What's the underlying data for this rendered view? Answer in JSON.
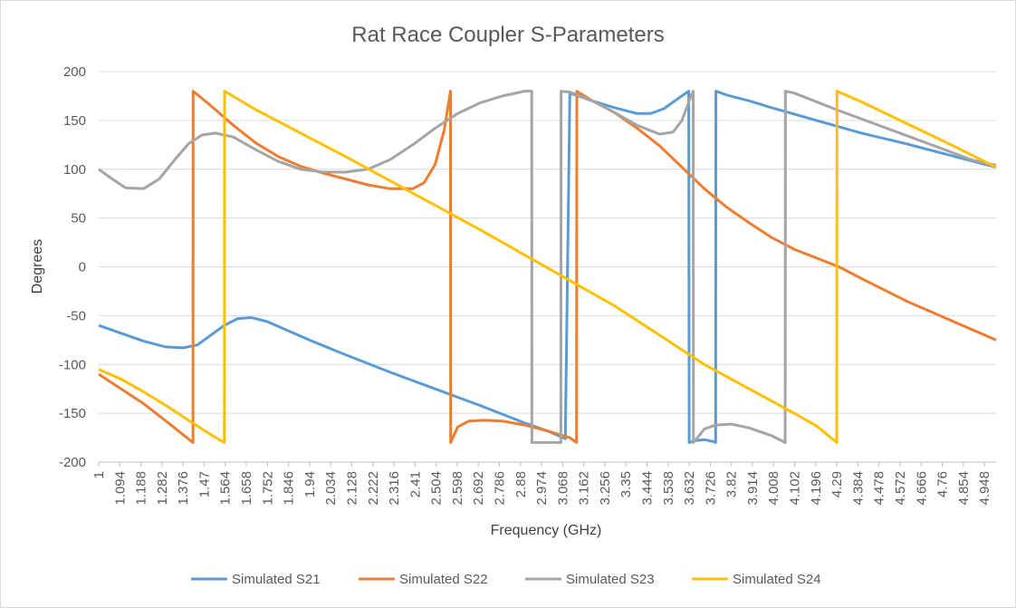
{
  "chart_data": {
    "type": "line",
    "title": "Rat Race Coupler S-Parameters",
    "xlabel": "Frequency (GHz)",
    "ylabel": "Degrees",
    "xlim": [
      1,
      5
    ],
    "ylim": [
      -200,
      200
    ],
    "y_ticks": [
      200,
      150,
      100,
      50,
      0,
      -50,
      -100,
      -150,
      -200
    ],
    "x_ticks": [
      "1",
      "1.094",
      "1.188",
      "1.282",
      "1.376",
      "1.47",
      "1.564",
      "1.658",
      "1.752",
      "1.846",
      "1.94",
      "2.034",
      "2.128",
      "2.222",
      "2.316",
      "2.41",
      "2.504",
      "2.598",
      "2.692",
      "2.786",
      "2.88",
      "2.974",
      "3.068",
      "3.162",
      "3.256",
      "3.35",
      "3.444",
      "3.538",
      "3.632",
      "3.726",
      "3.82",
      "3.914",
      "4.008",
      "4.102",
      "4.196",
      "4.29",
      "4.384",
      "4.478",
      "4.572",
      "4.666",
      "4.76",
      "4.854",
      "4.948"
    ],
    "grid": "horizontal",
    "legend_position": "bottom",
    "series": [
      {
        "name": "Simulated S21",
        "color": "#5b9bd5",
        "points": [
          [
            1.0,
            -60
          ],
          [
            1.1,
            -68
          ],
          [
            1.2,
            -76
          ],
          [
            1.3,
            -82
          ],
          [
            1.376,
            -83
          ],
          [
            1.44,
            -80
          ],
          [
            1.5,
            -70
          ],
          [
            1.56,
            -60
          ],
          [
            1.62,
            -53
          ],
          [
            1.68,
            -52
          ],
          [
            1.75,
            -56
          ],
          [
            1.85,
            -66
          ],
          [
            1.95,
            -76
          ],
          [
            2.1,
            -90
          ],
          [
            2.3,
            -108
          ],
          [
            2.5,
            -125
          ],
          [
            2.7,
            -142
          ],
          [
            2.9,
            -160
          ],
          [
            3.0,
            -168
          ],
          [
            3.08,
            -176
          ],
          [
            3.1,
            178
          ],
          [
            3.2,
            170
          ],
          [
            3.3,
            163
          ],
          [
            3.4,
            157
          ],
          [
            3.46,
            157
          ],
          [
            3.52,
            162
          ],
          [
            3.58,
            172
          ],
          [
            3.63,
            180
          ],
          [
            3.632,
            -180
          ],
          [
            3.66,
            -178
          ],
          [
            3.7,
            -177
          ],
          [
            3.74,
            -179
          ],
          [
            3.75,
            -180
          ],
          [
            3.751,
            180
          ],
          [
            3.8,
            176
          ],
          [
            3.9,
            170
          ],
          [
            4.0,
            163
          ],
          [
            4.2,
            150
          ],
          [
            4.4,
            137
          ],
          [
            4.6,
            126
          ],
          [
            4.8,
            114
          ],
          [
            5.0,
            102
          ]
        ]
      },
      {
        "name": "Simulated S22",
        "color": "#ed7d31",
        "points": [
          [
            1.0,
            -110
          ],
          [
            1.1,
            -125
          ],
          [
            1.2,
            -140
          ],
          [
            1.3,
            -158
          ],
          [
            1.42,
            -180
          ],
          [
            1.421,
            180
          ],
          [
            1.5,
            165
          ],
          [
            1.6,
            145
          ],
          [
            1.7,
            127
          ],
          [
            1.8,
            113
          ],
          [
            1.9,
            103
          ],
          [
            2.0,
            96
          ],
          [
            2.1,
            90
          ],
          [
            2.2,
            84
          ],
          [
            2.3,
            80
          ],
          [
            2.4,
            80
          ],
          [
            2.45,
            86
          ],
          [
            2.5,
            105
          ],
          [
            2.54,
            140
          ],
          [
            2.568,
            180
          ],
          [
            2.569,
            -180
          ],
          [
            2.6,
            -164
          ],
          [
            2.65,
            -158
          ],
          [
            2.72,
            -157
          ],
          [
            2.8,
            -158
          ],
          [
            2.9,
            -162
          ],
          [
            3.0,
            -168
          ],
          [
            3.1,
            -175
          ],
          [
            3.13,
            -180
          ],
          [
            3.131,
            180
          ],
          [
            3.2,
            170
          ],
          [
            3.3,
            158
          ],
          [
            3.4,
            142
          ],
          [
            3.5,
            124
          ],
          [
            3.6,
            102
          ],
          [
            3.7,
            80
          ],
          [
            3.8,
            61
          ],
          [
            3.9,
            45
          ],
          [
            4.0,
            30
          ],
          [
            4.1,
            18
          ],
          [
            4.3,
            0
          ],
          [
            4.4,
            -12
          ],
          [
            4.6,
            -35
          ],
          [
            4.8,
            -55
          ],
          [
            5.0,
            -75
          ]
        ]
      },
      {
        "name": "Simulated S23",
        "color": "#a5a5a5",
        "points": [
          [
            1.0,
            100
          ],
          [
            1.06,
            90
          ],
          [
            1.12,
            81
          ],
          [
            1.2,
            80
          ],
          [
            1.27,
            90
          ],
          [
            1.34,
            110
          ],
          [
            1.4,
            126
          ],
          [
            1.46,
            135
          ],
          [
            1.52,
            137
          ],
          [
            1.6,
            133
          ],
          [
            1.7,
            120
          ],
          [
            1.8,
            108
          ],
          [
            1.9,
            100
          ],
          [
            2.0,
            97
          ],
          [
            2.1,
            97
          ],
          [
            2.2,
            100
          ],
          [
            2.3,
            110
          ],
          [
            2.4,
            125
          ],
          [
            2.5,
            142
          ],
          [
            2.6,
            157
          ],
          [
            2.7,
            168
          ],
          [
            2.8,
            175
          ],
          [
            2.9,
            180
          ],
          [
            2.93,
            180
          ],
          [
            2.931,
            -180
          ],
          [
            3.0,
            -180
          ],
          [
            3.06,
            -180
          ],
          [
            3.061,
            180
          ],
          [
            3.1,
            179
          ],
          [
            3.2,
            170
          ],
          [
            3.3,
            158
          ],
          [
            3.4,
            145
          ],
          [
            3.5,
            136
          ],
          [
            3.56,
            138
          ],
          [
            3.6,
            150
          ],
          [
            3.64,
            175
          ],
          [
            3.65,
            180
          ],
          [
            3.651,
            -180
          ],
          [
            3.7,
            -166
          ],
          [
            3.75,
            -162
          ],
          [
            3.82,
            -161
          ],
          [
            3.9,
            -165
          ],
          [
            4.0,
            -173
          ],
          [
            4.06,
            -180
          ],
          [
            4.061,
            180
          ],
          [
            4.1,
            178
          ],
          [
            4.3,
            160
          ],
          [
            4.5,
            143
          ],
          [
            4.7,
            126
          ],
          [
            4.9,
            109
          ],
          [
            5.0,
            104
          ]
        ]
      },
      {
        "name": "Simulated S24",
        "color": "#ffc000",
        "points": [
          [
            1.0,
            -105
          ],
          [
            1.1,
            -115
          ],
          [
            1.2,
            -128
          ],
          [
            1.3,
            -142
          ],
          [
            1.4,
            -157
          ],
          [
            1.5,
            -172
          ],
          [
            1.56,
            -180
          ],
          [
            1.561,
            180
          ],
          [
            1.7,
            161
          ],
          [
            1.9,
            137
          ],
          [
            2.1,
            113
          ],
          [
            2.3,
            88
          ],
          [
            2.5,
            63
          ],
          [
            2.7,
            38
          ],
          [
            2.9,
            12
          ],
          [
            3.1,
            -14
          ],
          [
            3.3,
            -40
          ],
          [
            3.5,
            -70
          ],
          [
            3.7,
            -100
          ],
          [
            3.9,
            -125
          ],
          [
            4.1,
            -150
          ],
          [
            4.2,
            -163
          ],
          [
            4.29,
            -180
          ],
          [
            4.291,
            180
          ],
          [
            4.4,
            169
          ],
          [
            4.6,
            147
          ],
          [
            4.8,
            125
          ],
          [
            5.0,
            102
          ]
        ]
      }
    ]
  }
}
